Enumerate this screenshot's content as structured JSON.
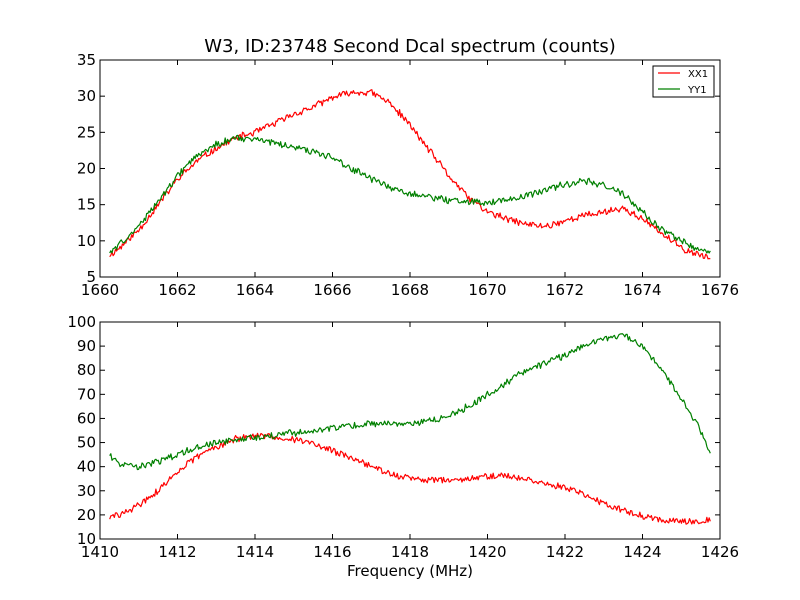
{
  "chart_data": [
    {
      "type": "line",
      "title": "W3, ID:23748 Second Dcal spectrum (counts)",
      "xlabel": "",
      "ylabel": "",
      "xlim": [
        1660,
        1676
      ],
      "ylim": [
        5,
        35
      ],
      "xticks": [
        1660,
        1662,
        1664,
        1666,
        1668,
        1670,
        1672,
        1674,
        1676
      ],
      "yticks": [
        5,
        10,
        15,
        20,
        25,
        30,
        35
      ],
      "grid": false,
      "legend": "top-right",
      "series": [
        {
          "name": "XX1",
          "color": "#ff0000",
          "x": [
            1660.25,
            1660.5,
            1661,
            1661.5,
            1662,
            1662.5,
            1663,
            1663.5,
            1664,
            1664.5,
            1665,
            1665.5,
            1666,
            1666.5,
            1667,
            1667.5,
            1668,
            1668.5,
            1669,
            1669.5,
            1670,
            1670.5,
            1671,
            1671.5,
            1672,
            1672.5,
            1673,
            1673.5,
            1674,
            1674.5,
            1675,
            1675.5,
            1675.75
          ],
          "y": [
            8,
            9,
            11.5,
            15,
            18.5,
            21,
            22.8,
            24.2,
            25,
            26.2,
            27.5,
            28.5,
            29.8,
            30.5,
            30.5,
            29,
            26,
            22.5,
            19,
            16,
            14,
            13,
            12.3,
            12,
            12.8,
            13.5,
            14,
            14.5,
            13,
            11,
            9,
            8,
            7.6
          ]
        },
        {
          "name": "YY1",
          "color": "#008000",
          "x": [
            1660.25,
            1660.5,
            1661,
            1661.5,
            1662,
            1662.5,
            1663,
            1663.5,
            1664,
            1664.5,
            1665,
            1665.5,
            1666,
            1666.5,
            1667,
            1667.5,
            1668,
            1668.5,
            1669,
            1669.5,
            1670,
            1670.5,
            1671,
            1671.5,
            1672,
            1672.5,
            1673,
            1673.5,
            1674,
            1674.5,
            1675,
            1675.5,
            1675.75
          ],
          "y": [
            8.5,
            9.5,
            12,
            15.5,
            19,
            21.8,
            23.3,
            24.2,
            24,
            23.5,
            23,
            22.3,
            21.5,
            20,
            18.5,
            17.3,
            16.5,
            16,
            15.6,
            15.4,
            15.3,
            15.6,
            16.3,
            17,
            17.8,
            18.3,
            17.8,
            16.5,
            14,
            11.5,
            10,
            8.8,
            8.4
          ]
        }
      ]
    },
    {
      "type": "line",
      "title": "",
      "xlabel": "Frequency (MHz)",
      "ylabel": "",
      "xlim": [
        1410,
        1426
      ],
      "ylim": [
        10,
        100
      ],
      "xticks": [
        1410,
        1412,
        1414,
        1416,
        1418,
        1420,
        1422,
        1424,
        1426
      ],
      "yticks": [
        10,
        20,
        30,
        40,
        50,
        60,
        70,
        80,
        90,
        100
      ],
      "grid": false,
      "series": [
        {
          "color": "#ff0000",
          "x": [
            1410.25,
            1410.5,
            1411,
            1411.5,
            1412,
            1412.5,
            1413,
            1413.5,
            1414,
            1414.5,
            1415,
            1415.5,
            1416,
            1416.5,
            1417,
            1417.5,
            1418,
            1418.5,
            1419,
            1419.5,
            1420,
            1420.5,
            1421,
            1421.5,
            1422,
            1422.5,
            1423,
            1423.5,
            1424,
            1424.5,
            1425,
            1425.5,
            1425.75
          ],
          "y": [
            19,
            20,
            24,
            30,
            38,
            44,
            48.5,
            51.5,
            52.5,
            52.5,
            51.5,
            49.5,
            46.5,
            43.5,
            40,
            37,
            35,
            34.5,
            34.5,
            35,
            36,
            36,
            35,
            33,
            31,
            28.5,
            25,
            22,
            19.5,
            18,
            17.5,
            17.5,
            18
          ]
        },
        {
          "color": "#008000",
          "x": [
            1410.25,
            1410.5,
            1411,
            1411.5,
            1412,
            1412.5,
            1413,
            1413.5,
            1414,
            1414.5,
            1415,
            1415.5,
            1416,
            1416.5,
            1417,
            1417.5,
            1418,
            1418.5,
            1419,
            1419.5,
            1420,
            1420.5,
            1421,
            1421.5,
            1422,
            1422.5,
            1423,
            1423.5,
            1424,
            1424.5,
            1425,
            1425.5,
            1425.75
          ],
          "y": [
            45,
            41,
            40,
            42,
            45,
            48,
            50,
            51,
            52,
            53,
            54,
            55,
            56,
            57,
            58,
            58,
            58,
            59,
            61,
            65,
            70,
            75,
            80,
            83,
            86,
            90,
            93,
            95,
            90,
            80,
            68,
            55,
            45
          ]
        }
      ]
    }
  ]
}
